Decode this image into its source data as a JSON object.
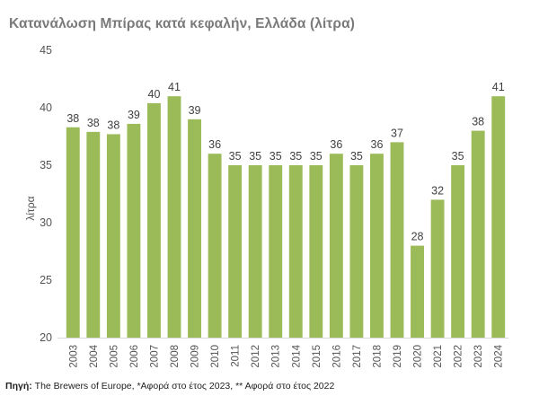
{
  "title": "Κατανάλωση Μπίρας κατά κεφαλήν, Ελλάδα (λίτρα)",
  "source": {
    "label": "Πηγή:",
    "text": " The Brewers of Europe, *Αφορά στο έτος 2023, ** Αφορά στο έτος 2022"
  },
  "chart_data": {
    "type": "bar",
    "title": "Κατανάλωση Μπίρας κατά κεφαλήν, Ελλάδα (λίτρα)",
    "xlabel": "",
    "ylabel": "λίτρα",
    "ylim": [
      20,
      45
    ],
    "yticks": [
      20,
      25,
      30,
      35,
      40,
      45
    ],
    "grid": false,
    "legend": "none",
    "bar_color": "#9bbb59",
    "categories": [
      "2003",
      "2004",
      "2005",
      "2006",
      "2007",
      "2008",
      "2009",
      "2010",
      "2011",
      "2012",
      "2013",
      "2014",
      "2015",
      "2016",
      "2017",
      "2018",
      "2019",
      "2020",
      "2021",
      "2022",
      "2023",
      "2024"
    ],
    "values": [
      38.3,
      37.9,
      37.7,
      38.6,
      40.4,
      41.0,
      39.0,
      36.0,
      35,
      35,
      35,
      35,
      35,
      36,
      35,
      36,
      37,
      28,
      32,
      35,
      38,
      41
    ],
    "data_labels": [
      "38",
      "38",
      "38",
      "39",
      "40",
      "41",
      "39",
      "36",
      "35",
      "35",
      "35",
      "35",
      "35",
      "36",
      "35",
      "36",
      "37",
      "28",
      "32",
      "35",
      "38",
      "41"
    ]
  }
}
